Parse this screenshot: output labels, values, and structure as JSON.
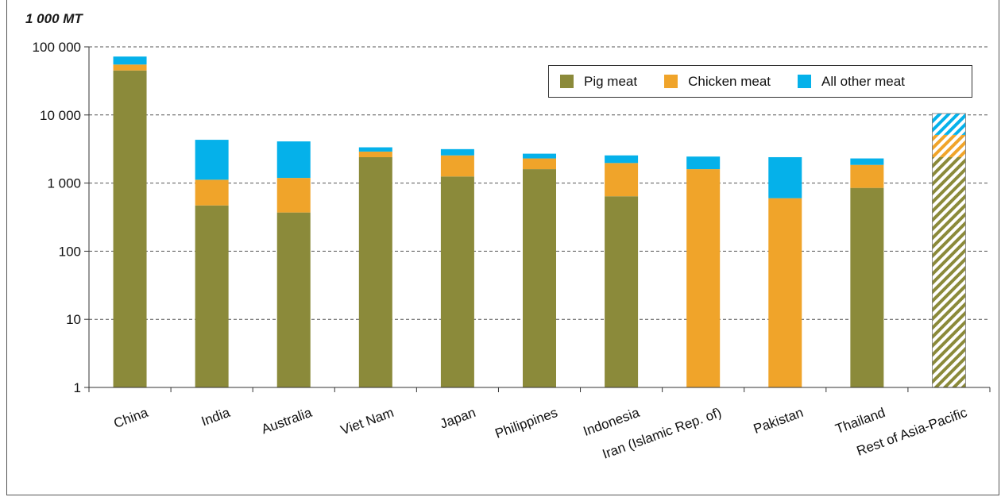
{
  "unit_label": "1 000 MT",
  "colors": {
    "pig": "#8b8a3a",
    "chicken": "#f0a42a",
    "other": "#05b1ea"
  },
  "legend": [
    {
      "key": "pig",
      "label": "Pig meat"
    },
    {
      "key": "chicken",
      "label": "Chicken meat"
    },
    {
      "key": "other",
      "label": "All other meat"
    }
  ],
  "chart_data": {
    "type": "bar",
    "stacked": true,
    "scale": "log",
    "ylim": [
      1,
      100000
    ],
    "yticks": [
      1,
      10,
      100,
      1000,
      10000,
      100000
    ],
    "ytick_labels": [
      "1",
      "10",
      "100",
      "1 000",
      "10 000",
      "100 000"
    ],
    "grid": "horizontal dashed",
    "legend_position": "top-right",
    "categories": [
      "China",
      "India",
      "Australia",
      "Viet Nam",
      "Japan",
      "Philippines",
      "Indonesia",
      "Iran (Islamic Rep. of)",
      "Pakistan",
      "Thailand",
      "Rest of Asia-Pacific"
    ],
    "series": [
      {
        "name": "Pig meat",
        "key": "pig",
        "values": [
          45000,
          470,
          370,
          2400,
          1250,
          1600,
          640,
          0,
          0,
          850,
          2400
        ]
      },
      {
        "name": "Chicken meat",
        "key": "chicken",
        "values": [
          10000,
          650,
          820,
          500,
          1300,
          700,
          1330,
          1600,
          600,
          1000,
          2700
        ]
      },
      {
        "name": "All other meat",
        "key": "other",
        "values": [
          17000,
          3200,
          2900,
          450,
          600,
          400,
          580,
          850,
          1800,
          450,
          5400
        ]
      }
    ],
    "hatched_categories": [
      "Rest of Asia-Pacific"
    ]
  }
}
